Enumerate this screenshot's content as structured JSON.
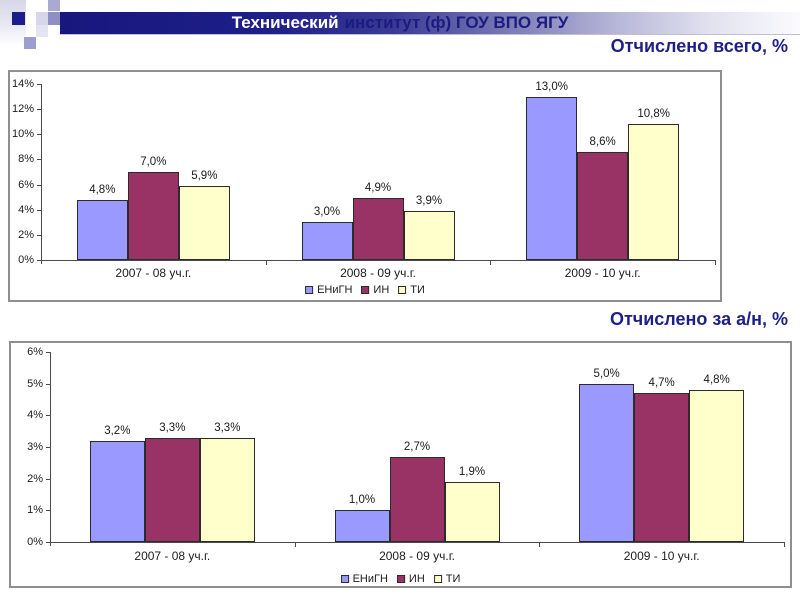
{
  "slide": {
    "title": {
      "bold": "Технический",
      "rest": "институт (ф) ГОУ ВПО ЯГУ"
    }
  },
  "colors": {
    "title_band_navy": "#17177e",
    "title_bold_text": "#ffffff",
    "title_rest_text": "#1b1b80",
    "subtitle_text": "#1f1f8a",
    "series_blue": "#9999ff",
    "series_maroon": "#993366",
    "series_yellow": "#ffffcc",
    "panel_border": "#8f8f8f"
  },
  "chart_data": [
    {
      "type": "bar",
      "title": "Отчислено всего, %",
      "categories": [
        "2007 - 08 уч.г.",
        "2008 - 09 уч.г.",
        "2009 - 10 уч.г."
      ],
      "series": [
        {
          "name": "ЕНиГН",
          "color": "#9999ff",
          "values": [
            4.8,
            3.0,
            13.0
          ],
          "labels": [
            "4,8%",
            "3,0%",
            "13,0%"
          ]
        },
        {
          "name": "ИН",
          "color": "#993366",
          "values": [
            7.0,
            4.9,
            8.6
          ],
          "labels": [
            "7,0%",
            "4,9%",
            "8,6%"
          ]
        },
        {
          "name": "ТИ",
          "color": "#ffffcc",
          "values": [
            5.9,
            3.9,
            10.8
          ],
          "labels": [
            "5,9%",
            "3,9%",
            "10,8%"
          ]
        }
      ],
      "ylim": [
        0,
        14
      ],
      "ytick_step": 2,
      "yticks": [
        "14%",
        "12%",
        "10%",
        "8%",
        "6%",
        "4%",
        "2%",
        "0%"
      ],
      "grid": false,
      "legend_position": "bottom"
    },
    {
      "type": "bar",
      "title": "Отчислено за а/н, %",
      "categories": [
        "2007 - 08 уч.г.",
        "2008 - 09 уч.г.",
        "2009 - 10 уч.г."
      ],
      "series": [
        {
          "name": "ЕНиГН",
          "color": "#9999ff",
          "values": [
            3.2,
            1.0,
            5.0
          ],
          "labels": [
            "3,2%",
            "1,0%",
            "5,0%"
          ]
        },
        {
          "name": "ИН",
          "color": "#993366",
          "values": [
            3.3,
            2.7,
            4.7
          ],
          "labels": [
            "3,3%",
            "2,7%",
            "4,7%"
          ]
        },
        {
          "name": "ТИ",
          "color": "#ffffcc",
          "values": [
            3.3,
            1.9,
            4.8
          ],
          "labels": [
            "3,3%",
            "1,9%",
            "4,8%"
          ]
        }
      ],
      "ylim": [
        0,
        6
      ],
      "ytick_step": 1,
      "yticks": [
        "6%",
        "5%",
        "4%",
        "3%",
        "2%",
        "1%",
        "0%"
      ],
      "grid": false,
      "legend_position": "bottom"
    }
  ]
}
